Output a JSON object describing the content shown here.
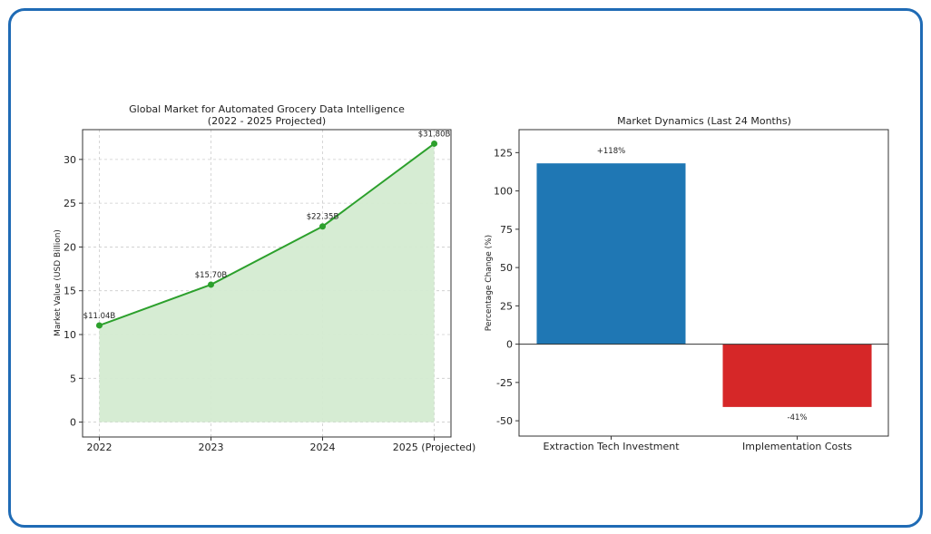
{
  "colors": {
    "frame": "#1f6bb5",
    "line": "#2ca02c",
    "fill": "#d4ebd1",
    "bar_positive": "#1f77b4",
    "bar_negative": "#d62728"
  },
  "chart_data": [
    {
      "type": "area",
      "title": "Global Market for Automated Grocery Data Intelligence",
      "subtitle": "(2022 - 2025 Projected)",
      "xlabel": "",
      "ylabel": "Market Value (USD Billion)",
      "categories": [
        "2022",
        "2023",
        "2024",
        "2025 (Projected)"
      ],
      "values": [
        11.04,
        15.7,
        22.35,
        31.8
      ],
      "data_labels": [
        "$11.04B",
        "$15.70B",
        "$22.35B",
        "$31.80B"
      ],
      "yticks": [
        0,
        5,
        10,
        15,
        20,
        25,
        30
      ],
      "ylim": [
        -1.7,
        33.4
      ],
      "grid": true,
      "legend": "none"
    },
    {
      "type": "bar",
      "title": "Market Dynamics (Last 24 Months)",
      "xlabel": "",
      "ylabel": "Percentage Change (%)",
      "categories": [
        "Extraction Tech Investment",
        "Implementation Costs"
      ],
      "values": [
        118,
        -41
      ],
      "data_labels": [
        "+118%",
        "-41%"
      ],
      "yticks": [
        -50,
        -25,
        0,
        25,
        50,
        75,
        100,
        125
      ],
      "ylim": [
        -60,
        140
      ],
      "grid": false,
      "legend": "none"
    }
  ]
}
